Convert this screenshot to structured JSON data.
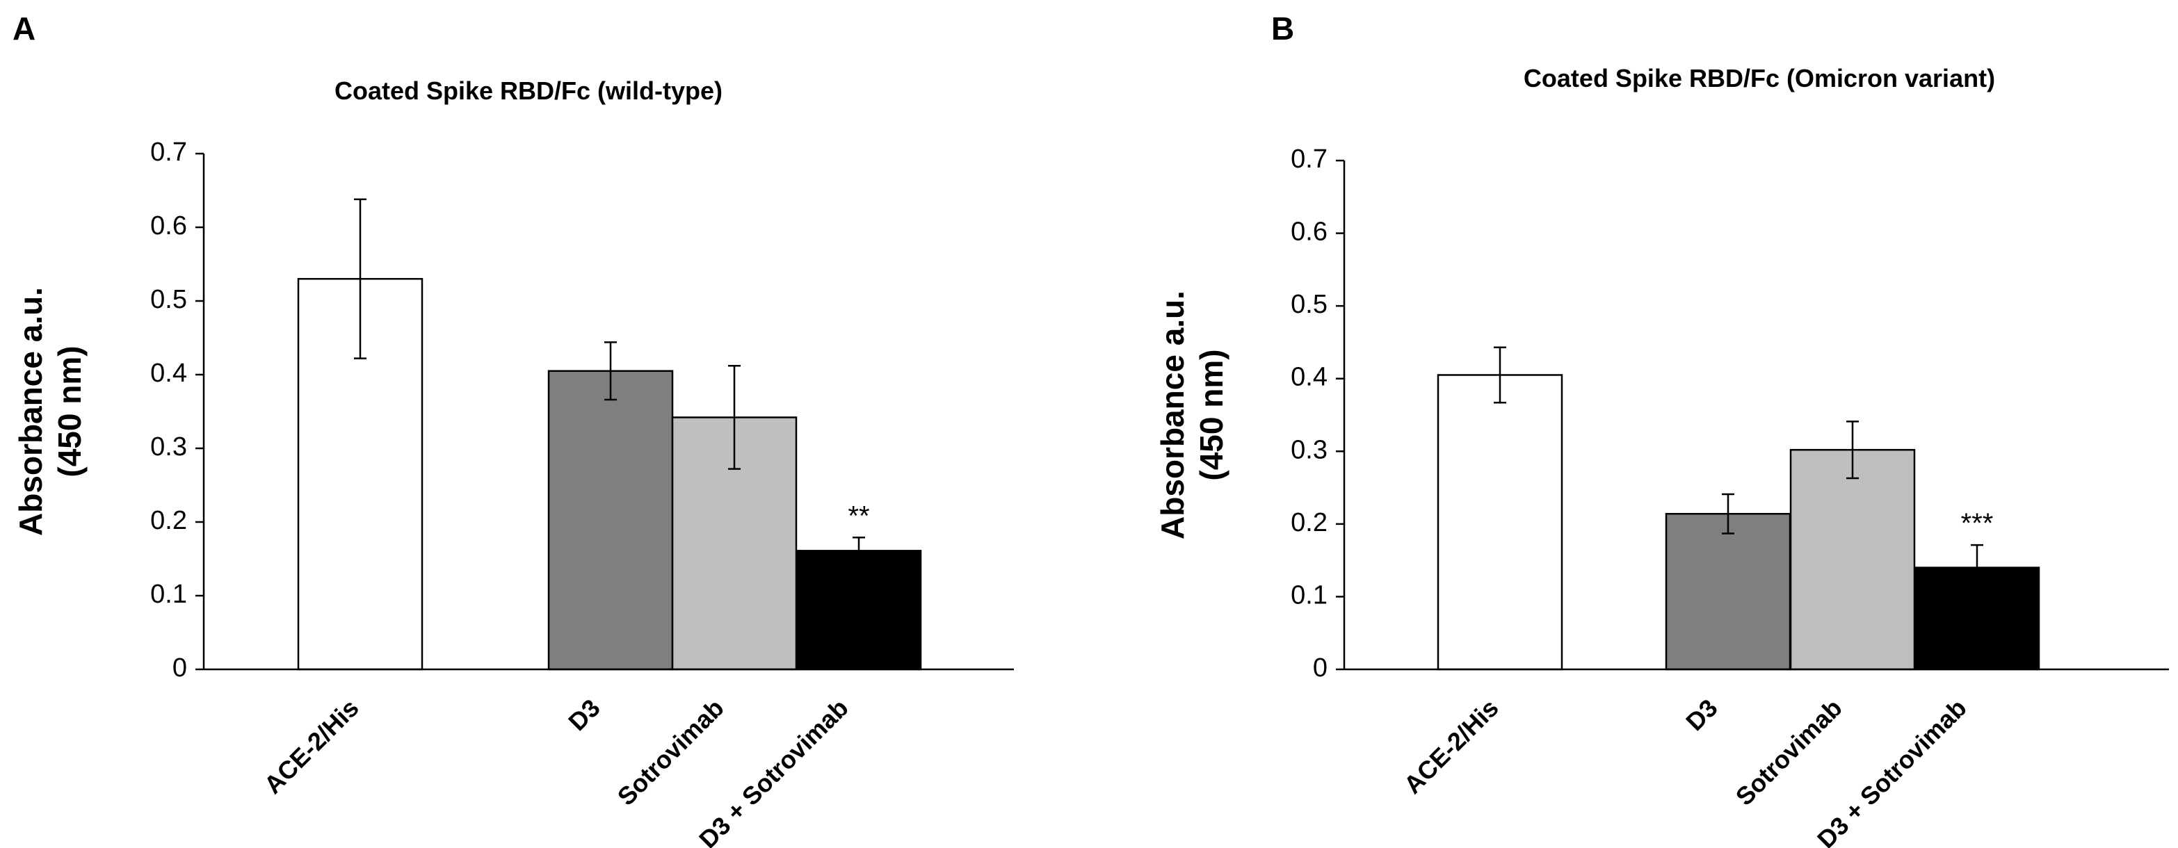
{
  "panels": [
    {
      "letter": "A"
    },
    {
      "letter": "B"
    }
  ],
  "chart_data": [
    {
      "type": "bar",
      "title": "Coated Spike RBD/Fc (wild-type)",
      "xlabel": "",
      "ylabel": [
        "Absorbance a.u.",
        "(450 nm)"
      ],
      "ylim": [
        0,
        0.7
      ],
      "yticks": [
        "0",
        "0.1",
        "0.2",
        "0.3",
        "0.4",
        "0.5",
        "0.6",
        "0.7"
      ],
      "grid": false,
      "categories": [
        "ACE-2/His",
        "D3",
        "Sotrovimab",
        "D3 + Sotrovimab"
      ],
      "values": [
        0.53,
        0.405,
        0.342,
        0.161
      ],
      "errors": [
        0.108,
        0.039,
        0.07,
        0.018
      ],
      "significance": [
        "",
        "",
        "",
        "**"
      ],
      "colors": [
        "#ffffff",
        "#7f7f7f",
        "#bfbfbf",
        "#000000"
      ]
    },
    {
      "type": "bar",
      "title": "Coated Spike RBD/Fc (Omicron variant)",
      "xlabel": "",
      "ylabel": [
        "Absorbance a.u.",
        "(450 nm)"
      ],
      "ylim": [
        0,
        0.7
      ],
      "yticks": [
        "0",
        "0.1",
        "0.2",
        "0.3",
        "0.4",
        "0.5",
        "0.6",
        "0.7"
      ],
      "grid": false,
      "categories": [
        "ACE-2/His",
        "D3",
        "Sotrovimab",
        "D3 + Sotrovimab"
      ],
      "values": [
        0.405,
        0.214,
        0.302,
        0.14
      ],
      "errors": [
        0.038,
        0.027,
        0.039,
        0.031
      ],
      "significance": [
        "",
        "",
        "",
        "***"
      ],
      "colors": [
        "#ffffff",
        "#7f7f7f",
        "#bfbfbf",
        "#000000"
      ]
    }
  ]
}
